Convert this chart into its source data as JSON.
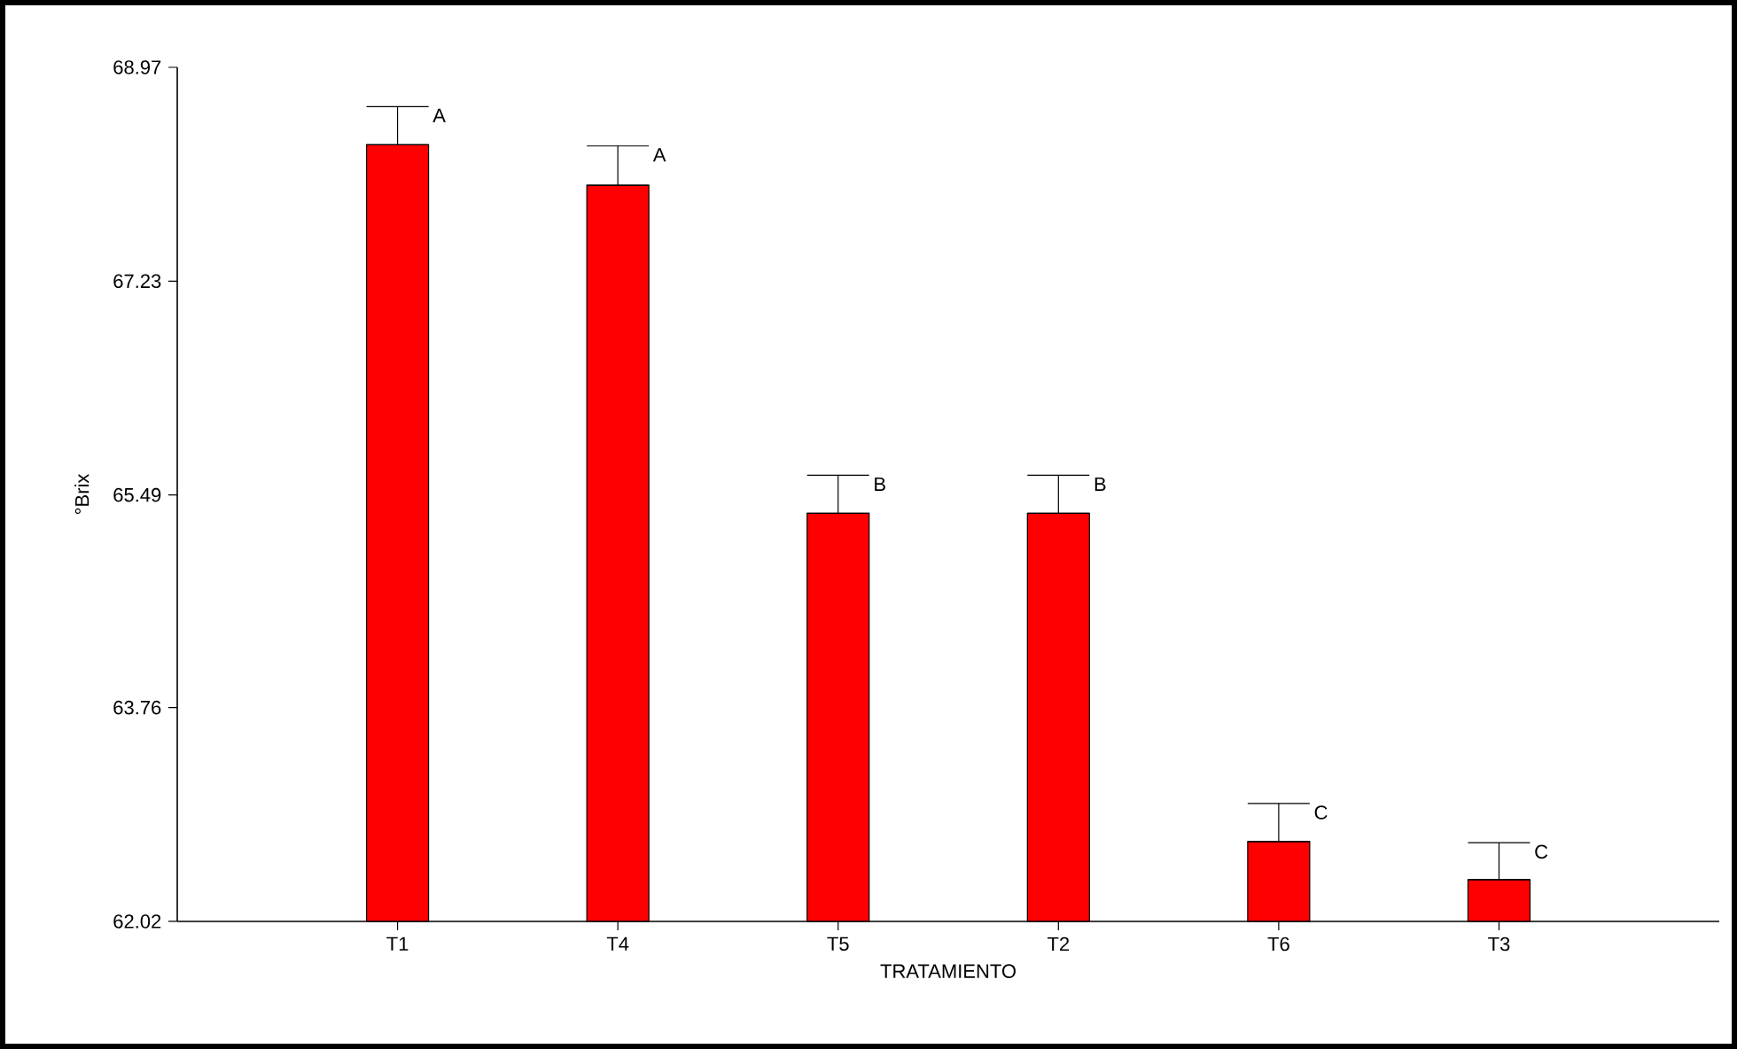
{
  "chart_data": {
    "type": "bar",
    "xlabel": "TRATAMIENTO",
    "ylabel": "°Brix",
    "categories": [
      "T1",
      "T4",
      "T5",
      "T2",
      "T6",
      "T3"
    ],
    "values": [
      68.34,
      68.01,
      65.34,
      65.34,
      62.67,
      62.36
    ],
    "errors": [
      [
        68.34,
        68.65
      ],
      [
        68.01,
        68.33
      ],
      [
        65.34,
        65.65
      ],
      [
        65.34,
        65.65
      ],
      [
        62.67,
        62.98
      ],
      [
        62.36,
        62.66
      ]
    ],
    "color": "#ff0000",
    "ylim": [
      62.02,
      68.97
    ],
    "yticks": [
      62.02,
      63.76,
      65.49,
      67.23,
      68.97
    ],
    "annotations": [
      "A",
      "A",
      "B",
      "B",
      "C",
      "C"
    ]
  }
}
